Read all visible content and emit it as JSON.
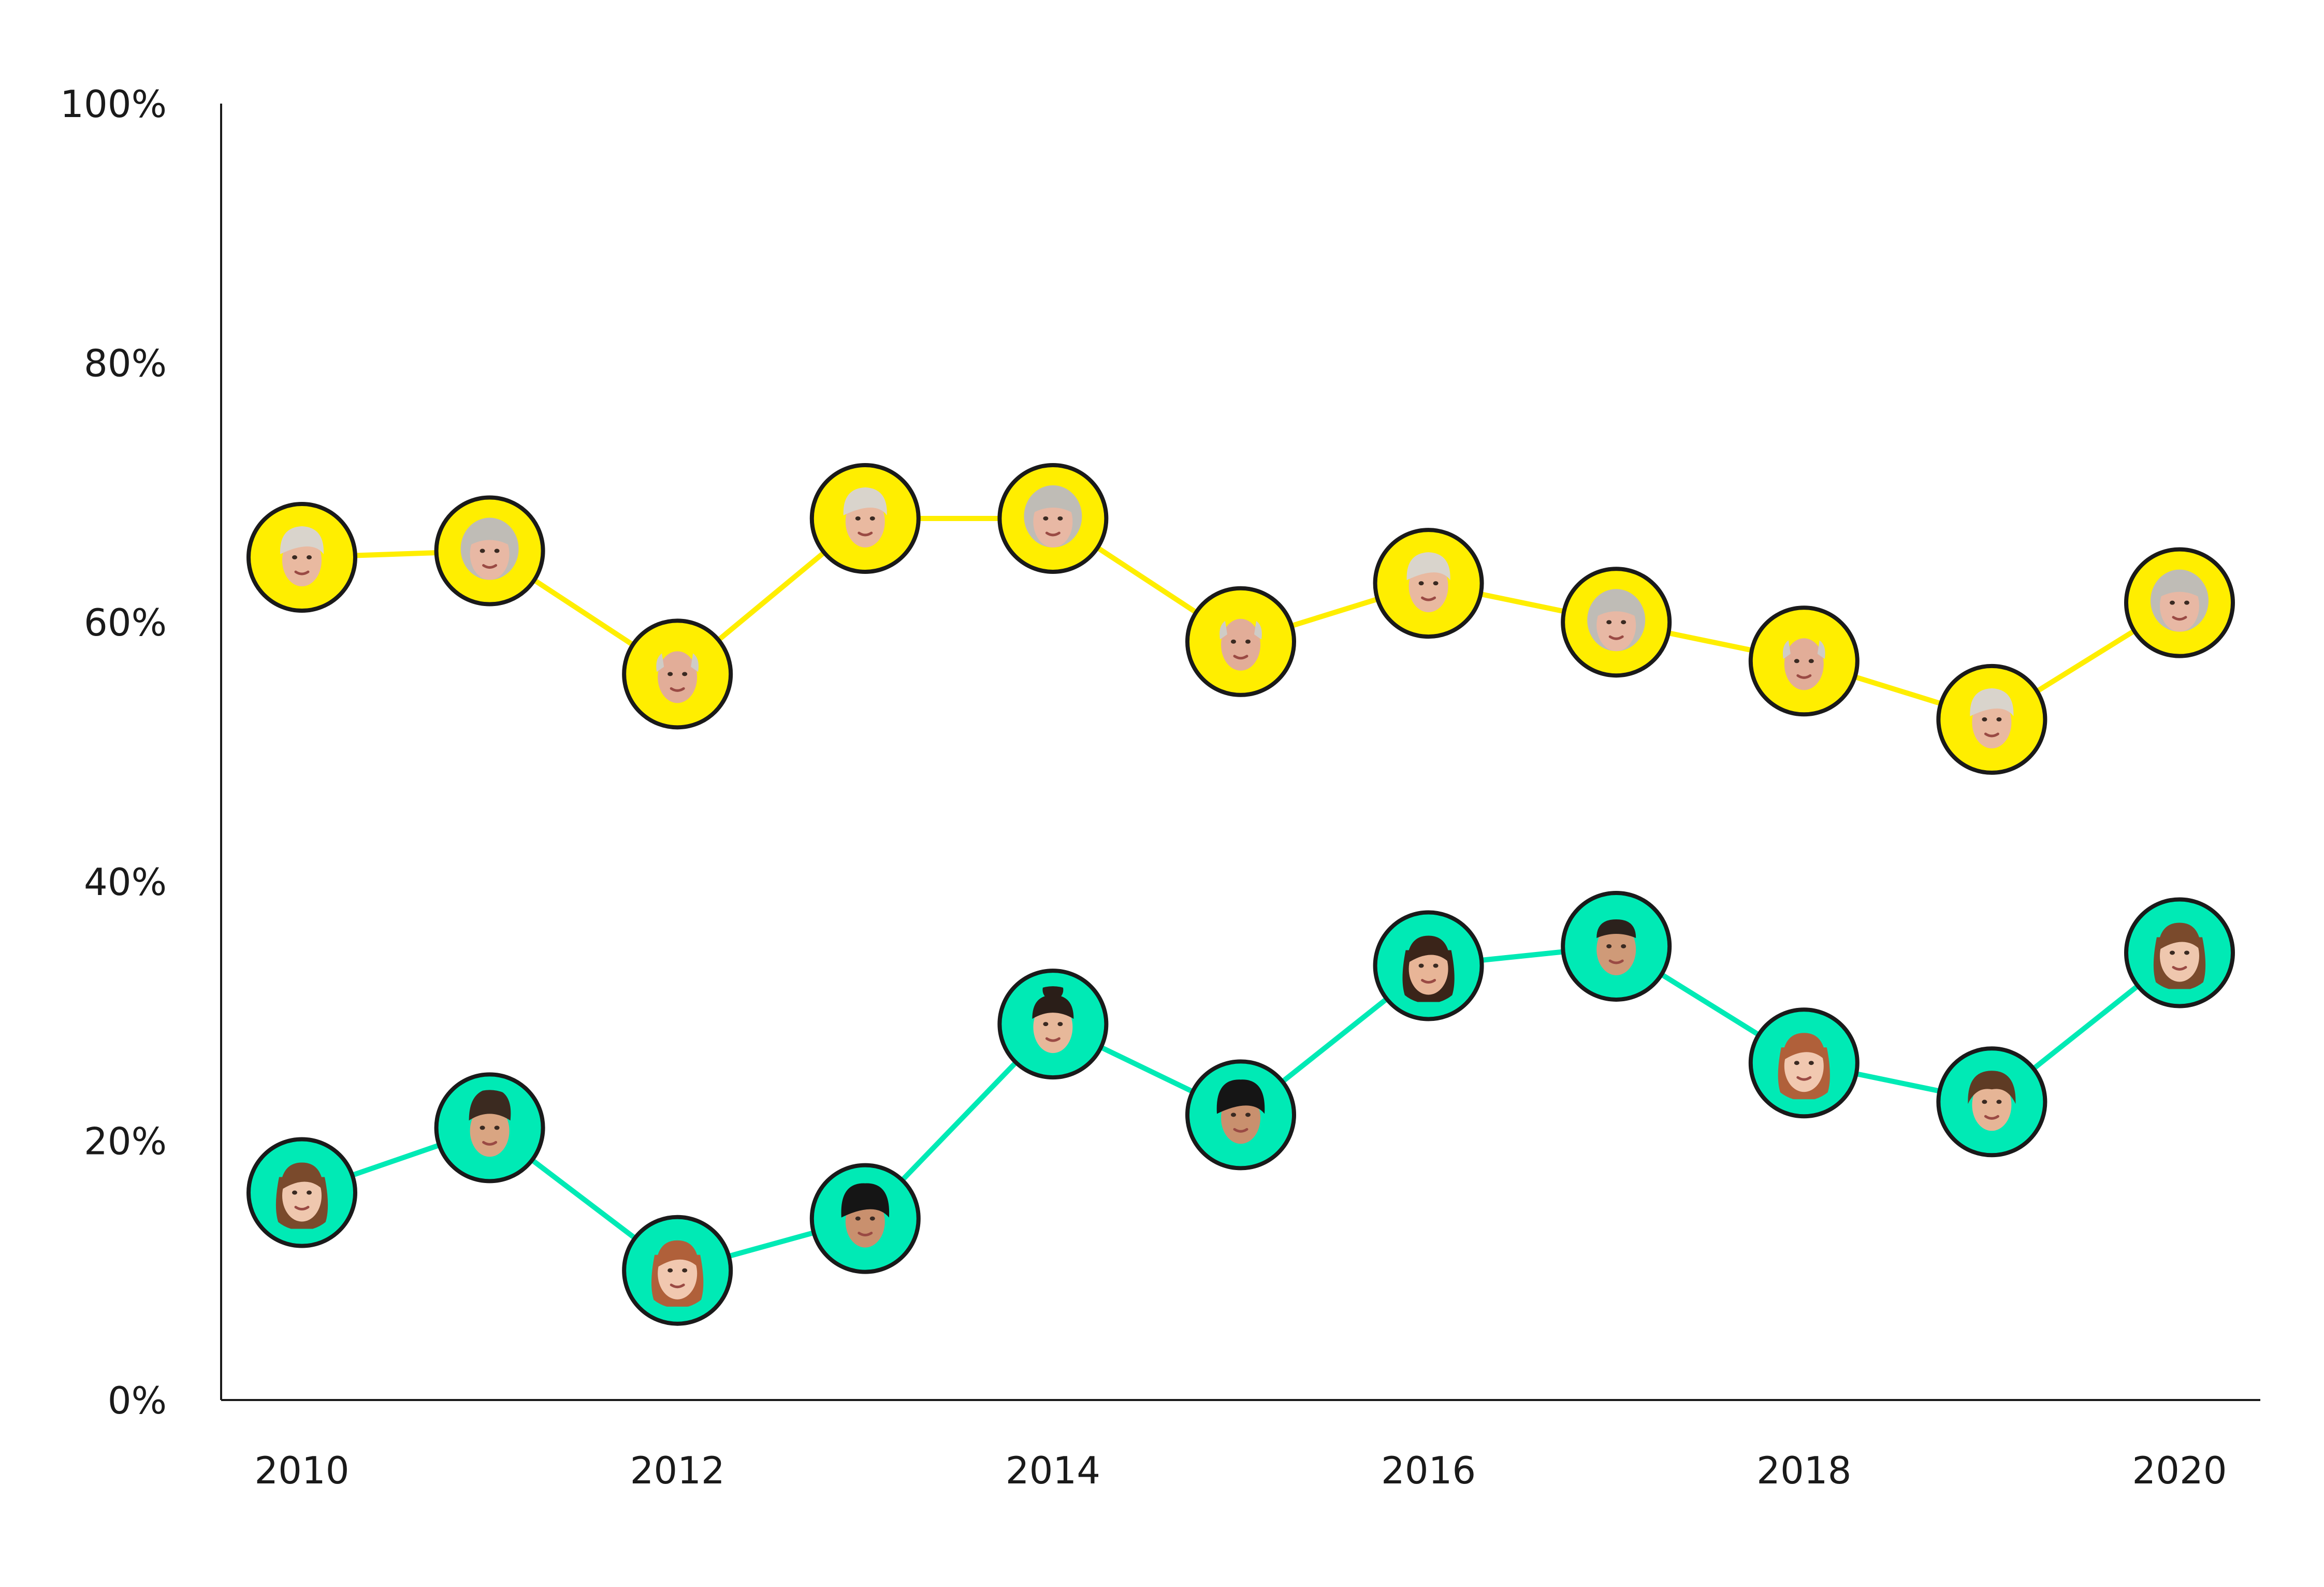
{
  "chart_data": {
    "type": "line",
    "title": "",
    "xlabel": "",
    "ylabel": "",
    "x": [
      2010,
      2011,
      2012,
      2013,
      2014,
      2015,
      2016,
      2017,
      2018,
      2019,
      2020
    ],
    "xlim": [
      2010,
      2020
    ],
    "ylim": [
      0,
      100
    ],
    "x_tick_labels": [
      "2010",
      "2012",
      "2014",
      "2016",
      "2018",
      "2020"
    ],
    "x_tick_values": [
      2010,
      2012,
      2014,
      2016,
      2018,
      2020
    ],
    "y_tick_labels": [
      "0%",
      "20%",
      "40%",
      "60%",
      "80%",
      "100%"
    ],
    "y_tick_values": [
      0,
      20,
      40,
      60,
      80,
      100
    ],
    "grid": false,
    "legend": "none",
    "series": [
      {
        "color": "#ffee00",
        "values": [
          65,
          65.5,
          56,
          68,
          68,
          58.5,
          63,
          60,
          57,
          52.5,
          61.5
        ],
        "marker": "portrait",
        "faces": [
          "older-woman-short-hair",
          "older-woman-gray-curly",
          "older-man-gray",
          "older-woman-short-hair",
          "older-woman-gray-curly",
          "older-man-gray",
          "older-woman-short-hair",
          "older-woman-gray-curly",
          "older-man-gray",
          "older-woman-short-hair",
          "older-woman-gray-curly"
        ]
      },
      {
        "color": "#00eab5",
        "values": [
          16,
          21,
          10,
          14,
          29,
          22,
          33.5,
          35,
          26,
          23,
          34.5
        ],
        "marker": "portrait",
        "faces": [
          "young-woman-brown-hair",
          "young-man-dark-hair",
          "young-woman-red-hair",
          "young-man-black-hair",
          "young-woman-dark-bun",
          "young-man-black-hair",
          "young-woman-dark-hair",
          "young-man-buzzcut",
          "young-woman-red-hair",
          "young-man-brown-hair",
          "young-woman-brown-hair"
        ]
      }
    ]
  }
}
